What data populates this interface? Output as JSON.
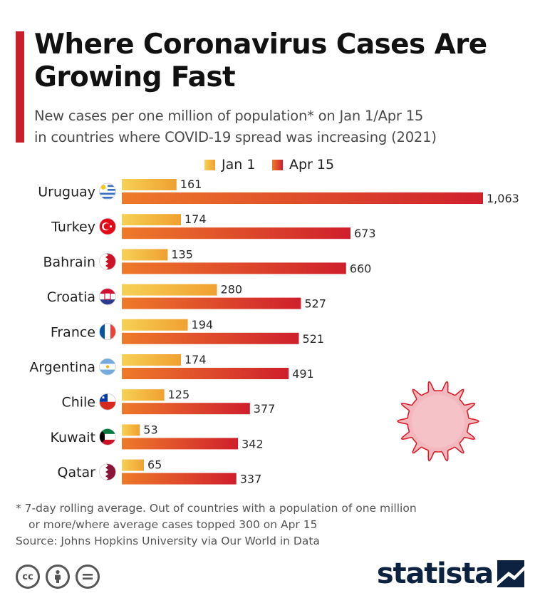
{
  "header": {
    "title": "Where Coronavirus Cases Are Growing Fast",
    "subtitle_line1": "New cases per one million of population* on Jan 1/Apr 15",
    "subtitle_line2": "in countries where COVID-19 spread was increasing (2021)"
  },
  "colors": {
    "accent": "#c8202a",
    "jan1_start": "#f6d155",
    "jan1_end": "#f0a030",
    "apr15_start": "#ee7a2a",
    "apr15_end": "#cf1f2c",
    "virus_fill": "#f2b8be",
    "virus_stroke": "#d8202c",
    "brand": "#0d2240"
  },
  "chart_data": {
    "type": "bar",
    "orientation": "horizontal",
    "categories": [
      "Uruguay",
      "Turkey",
      "Bahrain",
      "Croatia",
      "France",
      "Argentina",
      "Chile",
      "Kuwait",
      "Qatar"
    ],
    "series": [
      {
        "name": "Jan 1",
        "values": [
          161,
          174,
          135,
          280,
          194,
          174,
          125,
          53,
          65
        ]
      },
      {
        "name": "Apr 15",
        "values": [
          1063,
          673,
          660,
          527,
          521,
          491,
          377,
          342,
          337
        ]
      }
    ],
    "data_labels": [
      [
        "161",
        "174",
        "135",
        "280",
        "194",
        "174",
        "125",
        "53",
        "65"
      ],
      [
        "1,063",
        "673",
        "660",
        "527",
        "521",
        "491",
        "377",
        "342",
        "337"
      ]
    ],
    "flags": [
      "uruguay-flag-icon",
      "turkey-flag-icon",
      "bahrain-flag-icon",
      "croatia-flag-icon",
      "france-flag-icon",
      "argentina-flag-icon",
      "chile-flag-icon",
      "kuwait-flag-icon",
      "qatar-flag-icon"
    ],
    "legend_position": "top",
    "grid": false,
    "xlim": [
      0,
      1063
    ]
  },
  "footer": {
    "footnote_line1": "* 7-day rolling average. Out of countries with a population of one million",
    "footnote_line2": "or more/where average cases topped 300 on Apr 15",
    "source": "Source: Johns Hopkins University via Our World in Data",
    "license_icons": [
      "creative-commons-icon",
      "attribution-icon",
      "no-derivatives-icon"
    ],
    "brand": "statista"
  }
}
